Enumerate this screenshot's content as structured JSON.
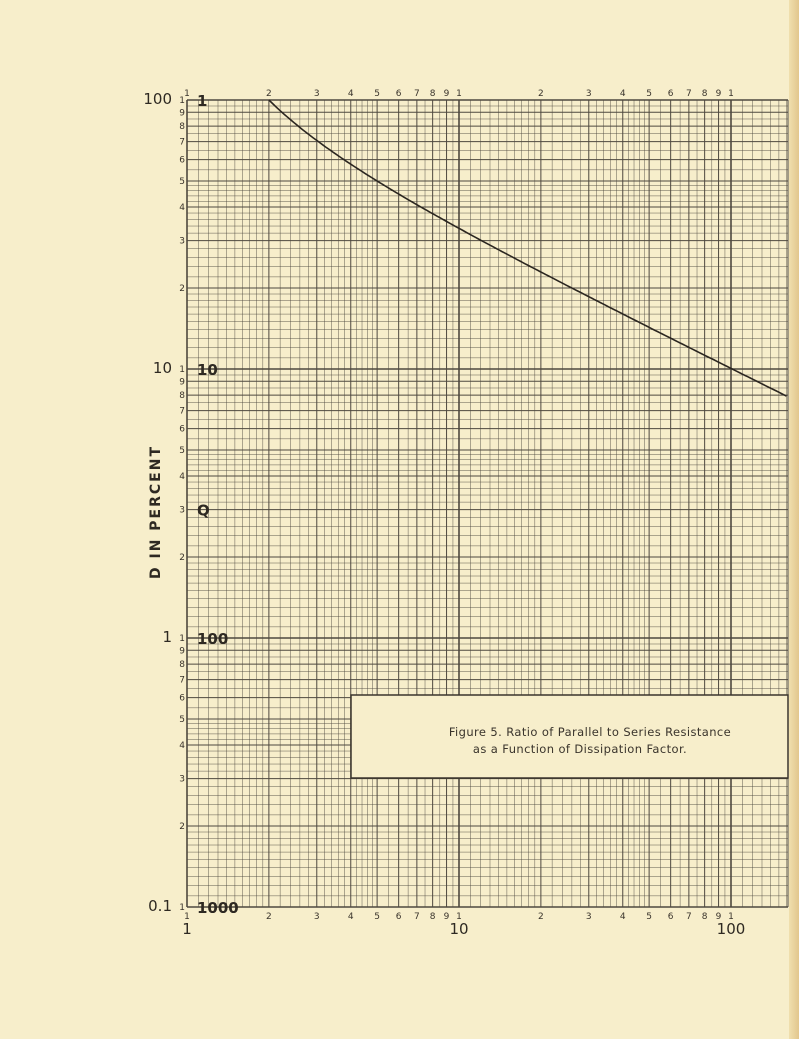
{
  "chart_data": {
    "type": "line",
    "title": "",
    "caption": [
      "Figure 5.  Ratio of Parallel to Series Resistance",
      "as a Function of Dissipation Factor."
    ],
    "xlabel": "",
    "ylabel": "D IN PERCENT",
    "xscale": "log",
    "yscale": "log",
    "xlim": [
      1,
      160
    ],
    "ylim": [
      0.1,
      100
    ],
    "grid": true,
    "x_major_labels": [
      "1",
      "10",
      "100"
    ],
    "x_tick_labels": [
      "1",
      "2",
      "3",
      "4",
      "5",
      "6",
      "7",
      "8",
      "9",
      "1",
      "2",
      "3",
      "4",
      "5",
      "6",
      "7",
      "8",
      "9",
      "1"
    ],
    "y_major_labels": [
      "100",
      "10",
      "1",
      "0.1"
    ],
    "y_tick_labels": [
      "9",
      "8",
      "7",
      "6",
      "5",
      "4",
      "3",
      "2",
      "1"
    ],
    "q_labels": [
      "1",
      "10",
      "Q",
      "100",
      "1000"
    ],
    "series": [
      {
        "x": [
          2,
          3,
          5,
          10,
          20,
          50,
          100,
          150
        ],
        "y": [
          100,
          70.7,
          50,
          33.3,
          22.9,
          14.3,
          10.05,
          8.19
        ]
      }
    ],
    "colors": {
      "paper": "#f7eecb",
      "grid": "#4e483f",
      "curve": "#2b2620"
    }
  }
}
